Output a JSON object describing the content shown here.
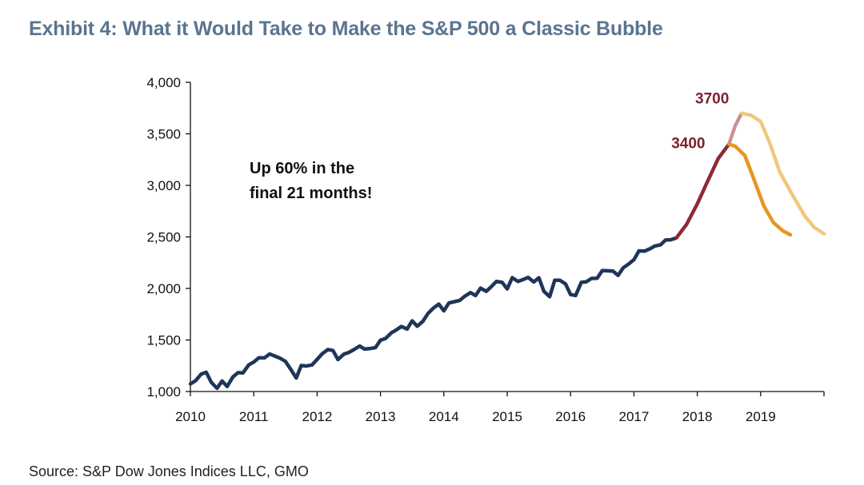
{
  "title": "Exhibit 4: What it Would Take to Make the S&P 500 a Classic Bubble",
  "source": "Source: S&P Dow Jones Indices LLC, GMO",
  "annotation": {
    "line1": "Up 60% in the",
    "line2": "final 21 months!"
  },
  "colors": {
    "actual": "#1f3559",
    "bubble_up": "#8e2a35",
    "bubble_up_alt": "#c9909a",
    "crash": "#e8961f",
    "crash_alt": "#f2c77a",
    "label": "#7b2230"
  },
  "chart_data": {
    "type": "line",
    "title": "Exhibit 4: What it Would Take to Make the S&P 500 a Classic Bubble",
    "xlabel": "",
    "ylabel": "",
    "ylim": [
      1000,
      4000
    ],
    "xlim": [
      2010.0,
      2020.0
    ],
    "y_ticks": [
      "1,000",
      "1,500",
      "2,000",
      "2,500",
      "3,000",
      "3,500",
      "4,000"
    ],
    "x_ticks": [
      "2010",
      "2011",
      "2012",
      "2013",
      "2014",
      "2015",
      "2016",
      "2017",
      "2018",
      "2019"
    ],
    "grid": false,
    "series": [
      {
        "name": "",
        "style": "actual",
        "x": [
          2010.0,
          2010.08,
          2010.17,
          2010.25,
          2010.33,
          2010.42,
          2010.5,
          2010.58,
          2010.67,
          2010.75,
          2010.83,
          2010.92,
          2011.0,
          2011.08,
          2011.17,
          2011.25,
          2011.33,
          2011.42,
          2011.5,
          2011.58,
          2011.67,
          2011.75,
          2011.83,
          2011.92,
          2012.0,
          2012.08,
          2012.17,
          2012.25,
          2012.33,
          2012.42,
          2012.5,
          2012.58,
          2012.67,
          2012.75,
          2012.83,
          2012.92,
          2013.0,
          2013.08,
          2013.17,
          2013.25,
          2013.33,
          2013.42,
          2013.5,
          2013.58,
          2013.67,
          2013.75,
          2013.83,
          2013.92,
          2014.0,
          2014.08,
          2014.17,
          2014.25,
          2014.33,
          2014.42,
          2014.5,
          2014.58,
          2014.67,
          2014.75,
          2014.83,
          2014.92,
          2015.0,
          2015.08,
          2015.17,
          2015.25,
          2015.33,
          2015.42,
          2015.5,
          2015.58,
          2015.67,
          2015.75,
          2015.83,
          2015.92,
          2016.0,
          2016.08,
          2016.17,
          2016.25,
          2016.33,
          2016.42,
          2016.5,
          2016.58,
          2016.67,
          2016.75,
          2016.83,
          2016.92,
          2017.0,
          2017.08,
          2017.17,
          2017.25,
          2017.33,
          2017.42,
          2017.5,
          2017.58,
          2017.67
        ],
        "y": [
          1074,
          1104,
          1169,
          1187,
          1089,
          1031,
          1102,
          1049,
          1141,
          1183,
          1181,
          1258,
          1286,
          1327,
          1326,
          1364,
          1345,
          1321,
          1292,
          1219,
          1131,
          1253,
          1247,
          1258,
          1312,
          1366,
          1408,
          1398,
          1310,
          1362,
          1379,
          1406,
          1441,
          1412,
          1416,
          1426,
          1498,
          1515,
          1569,
          1598,
          1631,
          1606,
          1686,
          1633,
          1682,
          1757,
          1806,
          1848,
          1783,
          1859,
          1872,
          1884,
          1924,
          1960,
          1931,
          2003,
          1972,
          2018,
          2068,
          2059,
          1995,
          2105,
          2068,
          2086,
          2107,
          2063,
          2104,
          1972,
          1920,
          2079,
          2080,
          2044,
          1940,
          1932,
          2060,
          2065,
          2097,
          2099,
          2174,
          2171,
          2168,
          2126,
          2199,
          2239,
          2279,
          2364,
          2363,
          2384,
          2412,
          2423,
          2470,
          2472,
          2491
        ]
      },
      {
        "name": "",
        "style": "bubble_up",
        "x": [
          2017.67,
          2017.83,
          2018.0,
          2018.17,
          2018.33,
          2018.5
        ],
        "y": [
          2491,
          2620,
          2820,
          3050,
          3260,
          3400
        ]
      },
      {
        "name": "",
        "style": "bubble_up_alt",
        "x": [
          2018.5,
          2018.6,
          2018.7
        ],
        "y": [
          3400,
          3580,
          3700
        ]
      },
      {
        "name": "",
        "style": "crash",
        "x": [
          2018.5,
          2018.6,
          2018.75,
          2018.9,
          2019.05,
          2019.2,
          2019.35,
          2019.47
        ],
        "y": [
          3400,
          3380,
          3290,
          3050,
          2800,
          2640,
          2560,
          2520
        ]
      },
      {
        "name": "",
        "style": "crash_alt",
        "x": [
          2018.7,
          2018.85,
          2019.0,
          2019.15,
          2019.3,
          2019.5,
          2019.7,
          2019.85,
          2020.0
        ],
        "y": [
          3700,
          3680,
          3620,
          3400,
          3130,
          2910,
          2700,
          2590,
          2530
        ]
      }
    ],
    "annotations": [
      {
        "text": "3700",
        "x": 2018.7,
        "y": 3700
      },
      {
        "text": "3400",
        "x": 2018.5,
        "y": 3400
      }
    ]
  }
}
